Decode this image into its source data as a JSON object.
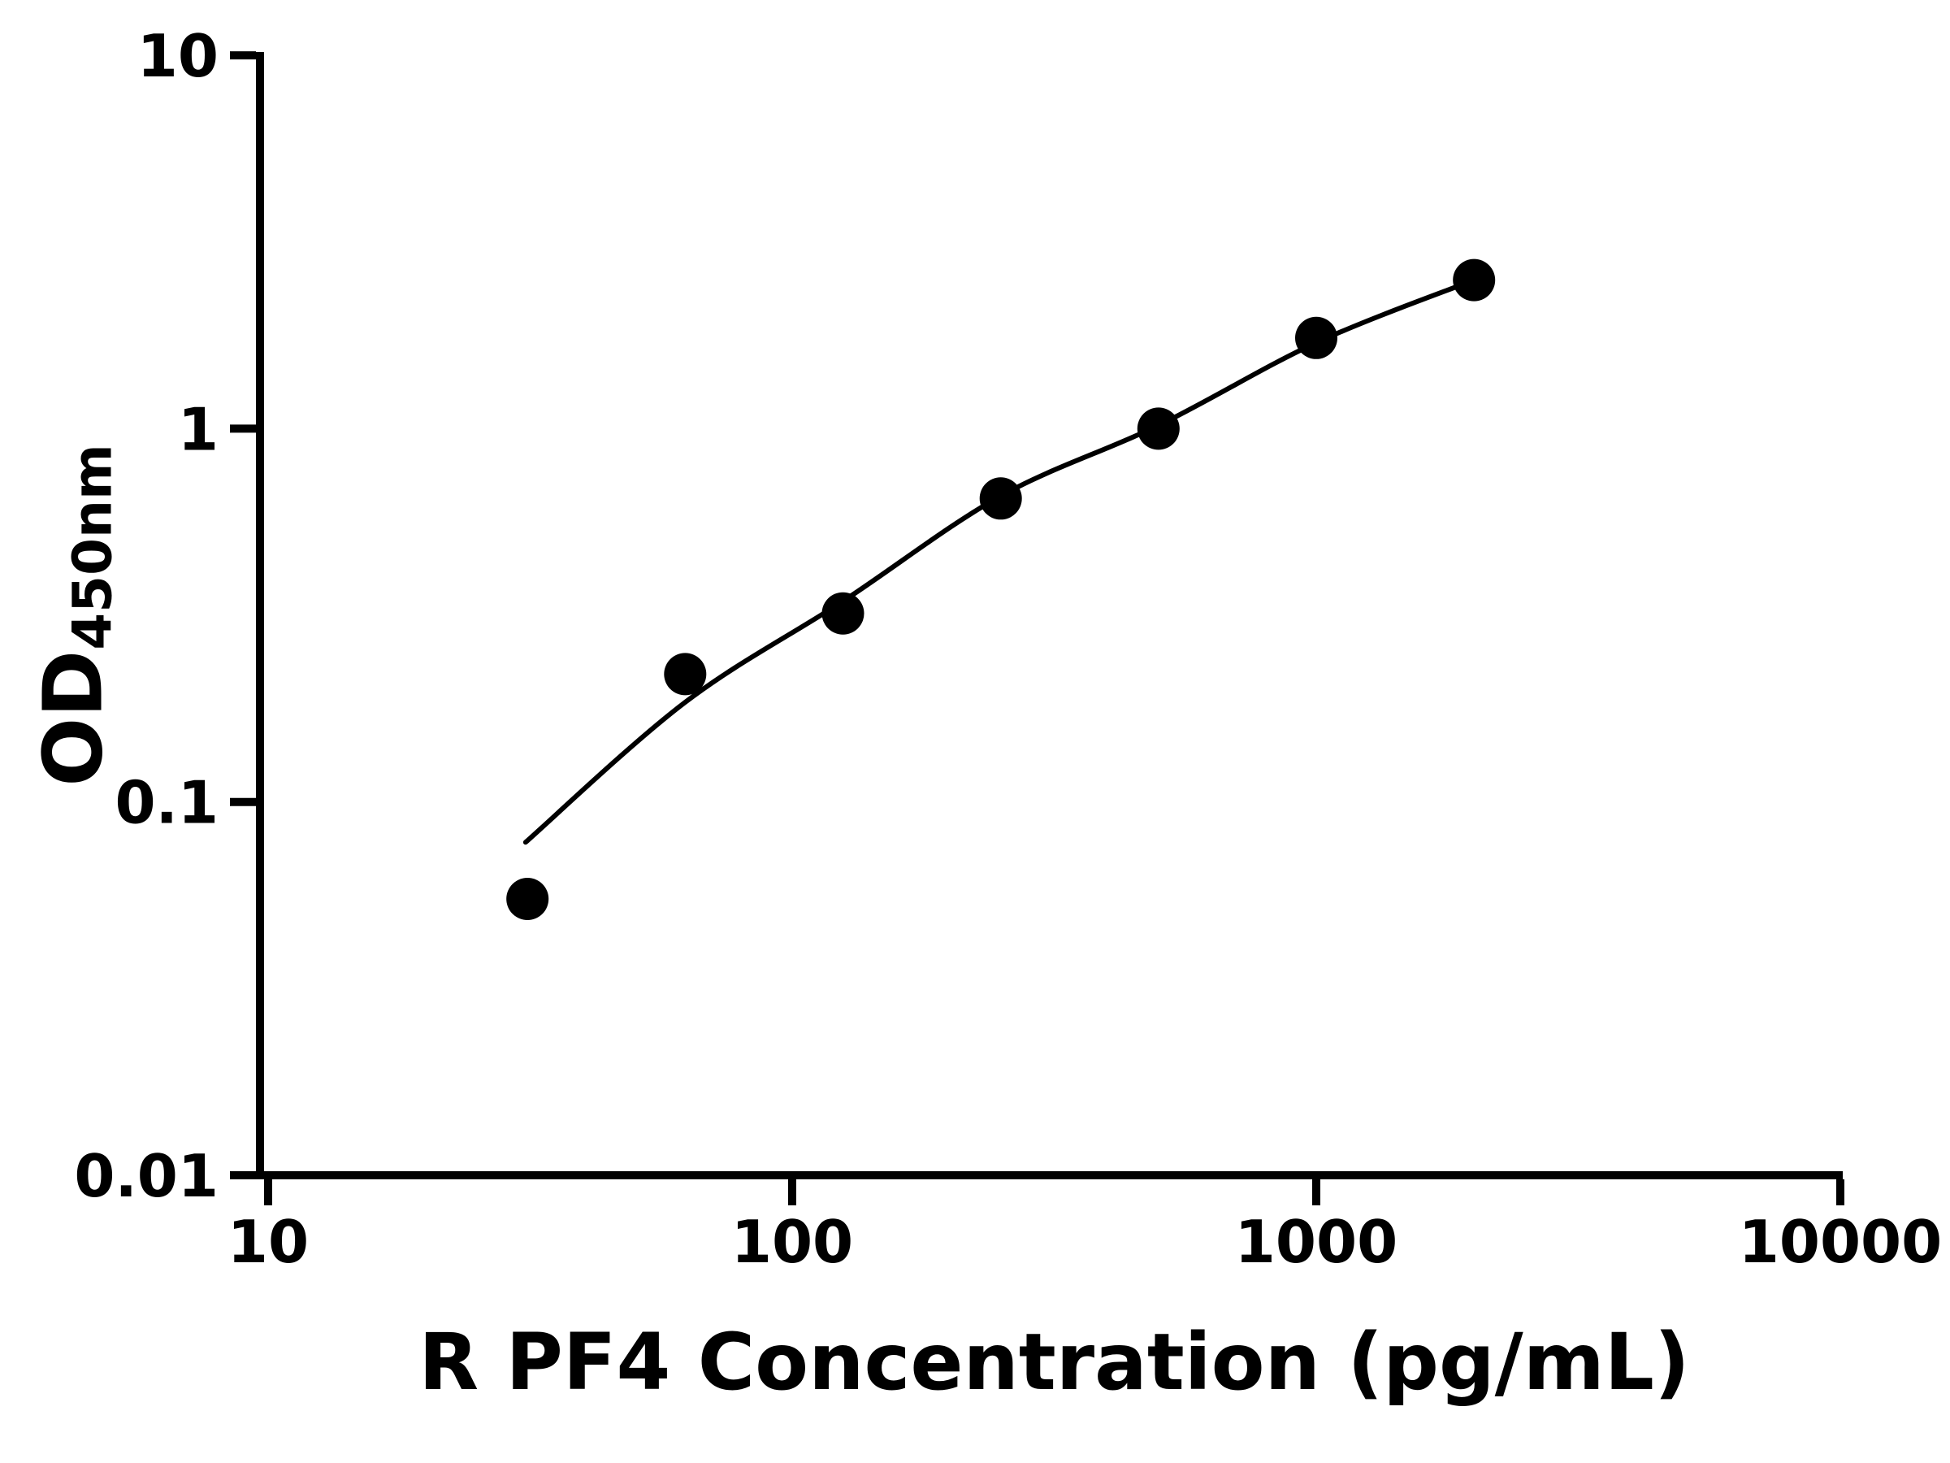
{
  "chart_data": {
    "type": "scatter",
    "title": "",
    "xlabel": "R PF4 Concentration (pg/mL)",
    "ylabel_main": "OD",
    "ylabel_sub": "450nm",
    "x_scale": "log",
    "y_scale": "log",
    "xlim": [
      10,
      10000
    ],
    "ylim": [
      0.01,
      10
    ],
    "grid": false,
    "legend": "none",
    "x_ticks": [
      {
        "value": 10,
        "label": "10"
      },
      {
        "value": 100,
        "label": "100"
      },
      {
        "value": 1000,
        "label": "1000"
      },
      {
        "value": 10000,
        "label": "10000"
      }
    ],
    "y_ticks": [
      {
        "value": 10,
        "label": "10"
      },
      {
        "value": 1,
        "label": "1"
      },
      {
        "value": 0.1,
        "label": "0.1"
      },
      {
        "value": 0.01,
        "label": "0.01"
      }
    ],
    "series": [
      {
        "name": "standard-points",
        "marker": "filled-circle",
        "x": [
          31.25,
          62.5,
          125,
          250,
          500,
          1000,
          2000
        ],
        "y": [
          0.055,
          0.22,
          0.32,
          0.65,
          1.0,
          1.75,
          2.5
        ]
      }
    ],
    "fit_curve": {
      "name": "standard-curve-fit",
      "x": [
        31,
        62.5,
        125,
        250,
        500,
        1000,
        2000
      ],
      "y": [
        0.078,
        0.185,
        0.345,
        0.66,
        1.02,
        1.7,
        2.5
      ]
    }
  },
  "colors": {
    "background": "#ffffff",
    "axis": "#000000",
    "point": "#000000",
    "curve": "#000000",
    "text": "#000000"
  }
}
